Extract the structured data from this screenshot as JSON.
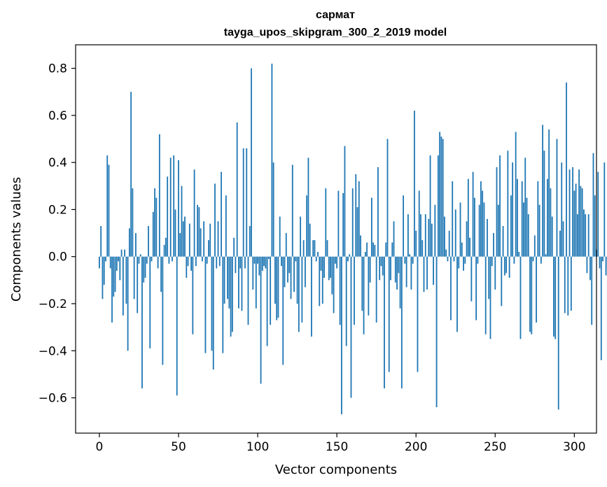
{
  "chart_data": {
    "type": "bar",
    "title": "сармат",
    "subtitle": "tayga_upos_skipgram_300_2_2019 model",
    "xlabel": "Vector components",
    "ylabel": "Components values",
    "xlim": [
      -15,
      314
    ],
    "ylim": [
      -0.75,
      0.9
    ],
    "x_ticks": [
      0,
      50,
      100,
      150,
      200,
      250,
      300
    ],
    "y_ticks": [
      -0.6,
      -0.4,
      -0.2,
      0.0,
      0.2,
      0.4,
      0.6,
      0.8
    ],
    "x_tick_labels": [
      "0",
      "50",
      "100",
      "150",
      "200",
      "250",
      "300"
    ],
    "y_tick_labels": [
      "−0.6",
      "−0.4",
      "−0.2",
      "0.0",
      "0.2",
      "0.4",
      "0.6",
      "0.8"
    ],
    "grid": false,
    "bar_color": "#1f77b4",
    "values": [
      -0.05,
      0.13,
      -0.18,
      -0.12,
      -0.02,
      0.43,
      0.39,
      -0.05,
      -0.28,
      -0.17,
      -0.15,
      -0.06,
      -0.02,
      -0.1,
      0.03,
      -0.25,
      0.03,
      -0.2,
      -0.4,
      0.12,
      0.7,
      0.29,
      -0.18,
      0.1,
      -0.24,
      -0.03,
      0.01,
      -0.56,
      -0.11,
      -0.09,
      -0.03,
      0.13,
      -0.39,
      -0.02,
      0.19,
      0.29,
      0.25,
      -0.05,
      0.52,
      -0.15,
      -0.46,
      0.05,
      0.08,
      0.34,
      -0.03,
      0.42,
      -0.02,
      0.43,
      0.2,
      -0.59,
      0.41,
      0.1,
      0.3,
      0.15,
      0.17,
      -0.09,
      -0.04,
      0.14,
      -0.06,
      -0.33,
      0.37,
      -0.04,
      0.22,
      0.21,
      0.12,
      -0.02,
      0.15,
      -0.41,
      -0.03,
      0.07,
      0.14,
      -0.4,
      -0.48,
      0.31,
      -0.05,
      0.15,
      -0.04,
      0.36,
      -0.41,
      -0.2,
      0.26,
      -0.18,
      -0.22,
      -0.34,
      -0.32,
      0.08,
      -0.07,
      0.57,
      -0.22,
      -0.05,
      -0.23,
      0.46,
      -0.05,
      0.46,
      -0.29,
      0.13,
      0.8,
      -0.14,
      -0.03,
      -0.22,
      -0.03,
      -0.08,
      -0.54,
      -0.06,
      -0.04,
      -0.05,
      -0.38,
      -0.01,
      -0.29,
      0.82,
      0.4,
      -0.2,
      -0.27,
      -0.26,
      0.17,
      -0.04,
      -0.46,
      -0.13,
      0.1,
      -0.11,
      -0.07,
      -0.18,
      0.39,
      -0.15,
      -0.02,
      -0.2,
      -0.32,
      0.17,
      -0.28,
      0.07,
      -0.13,
      0.26,
      0.42,
      0.14,
      -0.34,
      0.07,
      0.07,
      -0.02,
      0.02,
      -0.21,
      -0.06,
      -0.2,
      -0.09,
      0.29,
      0.07,
      -0.1,
      -0.09,
      -0.16,
      -0.24,
      -0.03,
      -0.05,
      0.28,
      -0.29,
      -0.67,
      0.27,
      0.47,
      -0.38,
      -0.02,
      0.01,
      -0.6,
      0.29,
      -0.29,
      0.35,
      0.21,
      0.32,
      0.09,
      -0.23,
      -0.33,
      0.02,
      0.06,
      -0.25,
      -0.11,
      0.25,
      0.06,
      0.05,
      -0.28,
      0.38,
      -0.1,
      -0.04,
      -0.08,
      -0.56,
      0.06,
      0.5,
      -0.49,
      -0.1,
      0.06,
      0.15,
      -0.11,
      -0.14,
      -0.07,
      -0.22,
      -0.56,
      0.26,
      -0.03,
      -0.13,
      0.18,
      0.01,
      -0.14,
      -0.03,
      0.62,
      0.11,
      -0.49,
      0.28,
      0.18,
      0.07,
      -0.15,
      0.18,
      -0.14,
      0.16,
      0.43,
      0.14,
      -0.12,
      0.22,
      -0.64,
      0.43,
      0.53,
      0.51,
      0.5,
      0.17,
      0.03,
      -0.02,
      0.11,
      -0.27,
      0.32,
      -0.02,
      0.2,
      -0.32,
      -0.05,
      0.23,
      0.06,
      -0.06,
      -0.03,
      0.15,
      0.33,
      0.08,
      -0.19,
      0.36,
      0.25,
      -0.27,
      -0.03,
      0.22,
      0.32,
      0.28,
      0.23,
      -0.33,
      0.16,
      -0.18,
      -0.35,
      -0.04,
      0.1,
      -0.14,
      0.38,
      0.22,
      0.43,
      -0.21,
      0.13,
      -0.08,
      -0.07,
      0.45,
      -0.09,
      0.26,
      0.4,
      -0.03,
      0.53,
      0.33,
      0.02,
      -0.35,
      0.32,
      0.23,
      0.42,
      0.25,
      0.18,
      -0.32,
      -0.33,
      -0.02,
      0.09,
      -0.28,
      0.32,
      0.22,
      -0.03,
      0.56,
      0.45,
      0.01,
      0.33,
      0.54,
      0.29,
      0.17,
      -0.34,
      -0.35,
      0.5,
      -0.65,
      0.11,
      0.4,
      0.15,
      -0.24,
      0.74,
      -0.25,
      0.37,
      -0.23,
      0.38,
      0.28,
      0.31,
      0.18,
      0.37,
      0.3,
      0.29,
      0.2,
      0.18,
      -0.07,
      0.18,
      -0.1,
      -0.29,
      0.44,
      0.26,
      0.03,
      0.36,
      -0.05,
      -0.44,
      -0.02,
      0.4,
      -0.08,
      -0.05
    ]
  }
}
